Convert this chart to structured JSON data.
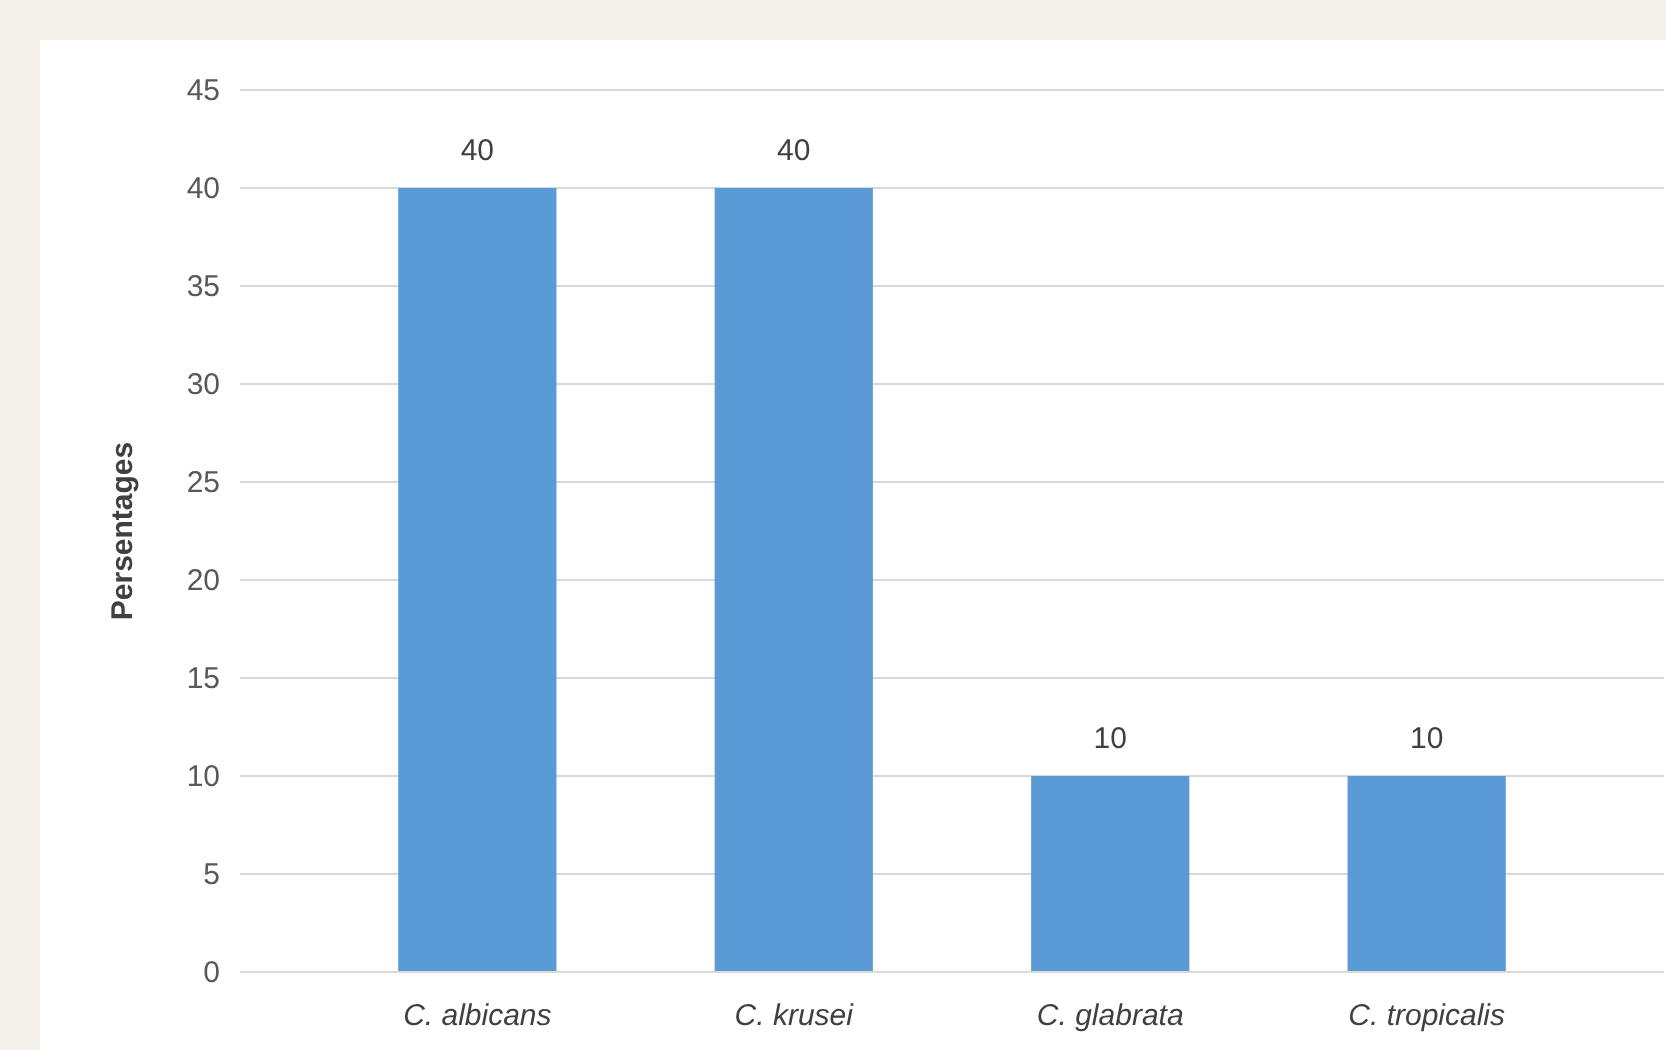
{
  "chart_data": {
    "type": "bar",
    "ylabel": "Persentages",
    "categories": [
      "C. albicans",
      "C. krusei",
      "C. glabrata",
      "C. tropicalis"
    ],
    "values": [
      40,
      40,
      10,
      10
    ],
    "color": "#5b9bd5",
    "ylim": [
      0,
      45
    ],
    "yticks": [
      0,
      5,
      10,
      15,
      20,
      25,
      30,
      35,
      40,
      45
    ],
    "grid": "y",
    "data_labels": true
  }
}
